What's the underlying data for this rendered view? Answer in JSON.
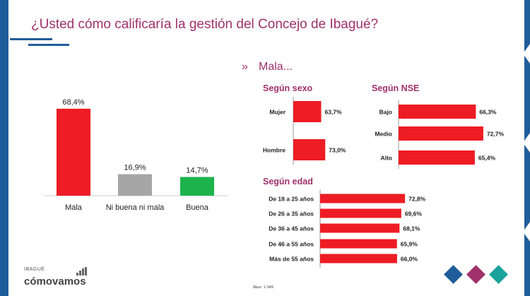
{
  "title": "¿Usted cómo calificaría la gestión del Concejo de Ibagué?",
  "subtitle": "Mala...",
  "sections": {
    "sexo": "Según sexo",
    "nse": "Según NSE",
    "edad": "Según edad"
  },
  "brand": {
    "small": "IBAGUÉ",
    "name": "cómovamos"
  },
  "base_note": "Base: 1.049.",
  "colors": {
    "accent": "#a0316b",
    "frame": "#1f5d9a",
    "red": "#ee1c25",
    "gray": "#a6a6a6",
    "green": "#1db34c"
  },
  "icons": {
    "subtitle_marker": "double-chevron-right-icon"
  },
  "chart_data": [
    {
      "type": "bar",
      "categories": [
        "Mala",
        "Ni buena ni mala",
        "Buena"
      ],
      "values": [
        68.4,
        16.9,
        14.7
      ],
      "labels": [
        "68,4%",
        "16,9%",
        "14,7%"
      ],
      "colors": [
        "#ee1c25",
        "#a6a6a6",
        "#1db34c"
      ],
      "ylim": [
        0,
        100
      ]
    },
    {
      "type": "bar",
      "orientation": "horizontal",
      "title": "Según sexo",
      "categories": [
        "Mujer",
        "Hombre"
      ],
      "values": [
        63.7,
        73.0
      ],
      "labels": [
        "63,7%",
        "73,0%"
      ]
    },
    {
      "type": "bar",
      "orientation": "horizontal",
      "title": "Según NSE",
      "categories": [
        "Bajo",
        "Medio",
        "Alto"
      ],
      "values": [
        66.3,
        72.7,
        65.4
      ],
      "labels": [
        "66,3%",
        "72,7%",
        "65,4%"
      ]
    },
    {
      "type": "bar",
      "orientation": "horizontal",
      "title": "Según edad",
      "categories": [
        "De 18 a 25 años",
        "De 26 a 35 años",
        "De 36 a 45 años",
        "De 46 a 55 años",
        "Más de 55 años"
      ],
      "values": [
        72.8,
        69.6,
        68.1,
        65.9,
        66.0
      ],
      "labels": [
        "72,8%",
        "69,6%",
        "68,1%",
        "65,9%",
        "66,0%"
      ]
    }
  ]
}
